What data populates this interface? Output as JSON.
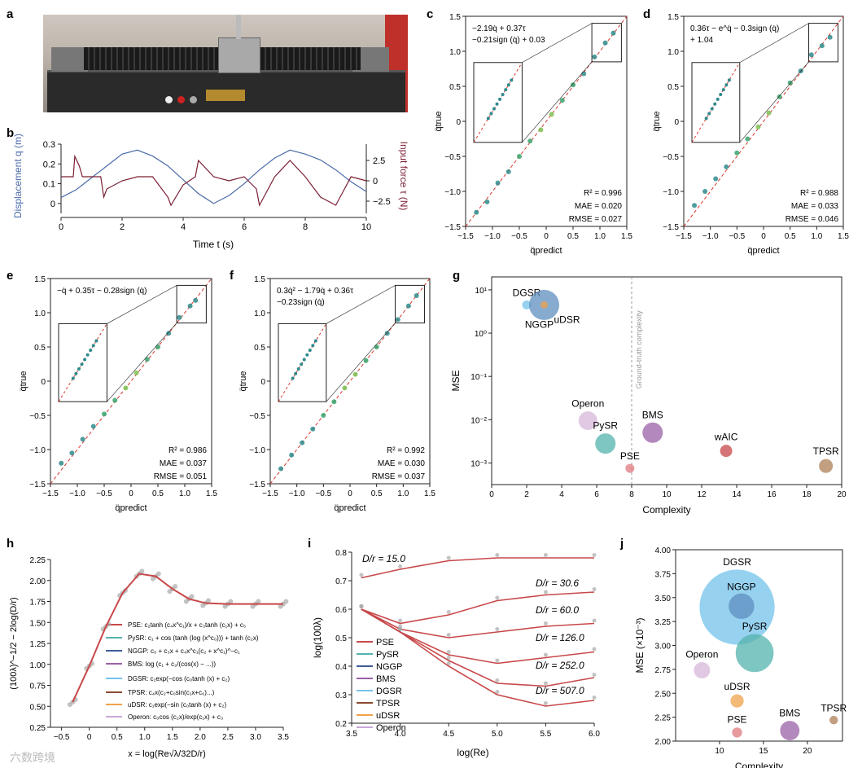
{
  "panel_labels": {
    "a": "a",
    "b": "b",
    "c": "c",
    "d": "d",
    "e": "e",
    "f": "f",
    "g": "g",
    "h": "h",
    "i": "i",
    "j": "j"
  },
  "colors": {
    "displacement": "#4a6aa8",
    "force": "#7a1f33",
    "diagonal": "#d9352b"
  },
  "panel_b": {
    "ylabel_left": "Displacement q (m)",
    "ylabel_right": "Input force τ (N)",
    "xlabel": "Time t (s)",
    "xticks": [
      "0",
      "2",
      "4",
      "6",
      "8",
      "10"
    ],
    "yticks_left": [
      "0",
      "0.1",
      "0.2",
      "0.3"
    ],
    "yticks_right": [
      "−2.5",
      "0",
      "2.5"
    ]
  },
  "scatter_panels": {
    "c": {
      "equation_line1": "−2.19q̇ + 0.37τ",
      "equation_line2": "−0.21sign (q̇) + 0.03",
      "r2": "R² = 0.996",
      "mae": "MAE = 0.020",
      "rmse": "RMSE = 0.027"
    },
    "d": {
      "equation_line1": "0.36τ − e^q̇ − 0.3sign (q̇)",
      "equation_line2": "+ 1.04",
      "r2": "R² = 0.988",
      "mae": "MAE = 0.033",
      "rmse": "RMSE = 0.046"
    },
    "e": {
      "equation_line1": "−q̇ + 0.35τ − 0.28sign (q̇)",
      "equation_line2": "",
      "r2": "R² = 0.986",
      "mae": "MAE = 0.037",
      "rmse": "RMSE = 0.051"
    },
    "f": {
      "equation_line1": "0.3q̇² − 1.79q̇ + 0.36τ",
      "equation_line2": "−0.23sign (q̇)",
      "r2": "R² = 0.992",
      "mae": "MAE = 0.030",
      "rmse": "RMSE = 0.037"
    },
    "xlabel": "q̈predict",
    "ylabel": "q̈true",
    "ticks": [
      "−1.5",
      "−1.0",
      "−0.5",
      "0",
      "0.5",
      "1.0",
      "1.5"
    ]
  },
  "panel_i_text": {
    "legend": [
      "PSE",
      "PySR",
      "NGGP",
      "BMS",
      "DGSR",
      "TPSR",
      "uDSR",
      "Operon"
    ]
  },
  "panel_h_text": {
    "legend_formulas": [
      "PSE: c₂tanh (c₄x^c₁)/x + c₃tanh (c₁x) + c₅",
      "PySR: c₁ + cos (tanh (log (x^c₀))) + tanh (c₂x)",
      "NGGP: c₀ + c₃x + c₄x^c₁(c₂ + x^c₁)^−c₁",
      "BMS: log (c₁ + c₂/(cos(x) − ...))",
      "DGSR: c₁exp(−cos (c₀tanh (x) + c₂)",
      "TPSR: c₄x(c₂+c₀sin(c₁x+c₆)...)",
      "uDSR: c₁exp(−sin (c₀tanh (x) + c₂)",
      "Operon: c₀cos (c₂x)/exp(c₁x) + c₃"
    ]
  },
  "watermark": "六数跨境",
  "chart_data": [
    {
      "type": "line",
      "id": "b",
      "xlabel": "Time t (s)",
      "ylabel": "Displacement q (m)",
      "ylabel_right": "Input force τ (N)",
      "xlim": [
        0,
        10
      ],
      "ylim": [
        -0.05,
        0.3
      ],
      "ylim_right": [
        -4,
        4.5
      ],
      "series": [
        {
          "name": "Displacement q (m)",
          "x": [
            0,
            0.5,
            1,
            1.5,
            2,
            2.5,
            3,
            3.5,
            4,
            4.5,
            5,
            5.5,
            6,
            6.5,
            7,
            7.5,
            8,
            8.5,
            9,
            9.5,
            10
          ],
          "values": [
            0.03,
            0.07,
            0.13,
            0.19,
            0.25,
            0.27,
            0.24,
            0.19,
            0.12,
            0.05,
            0.0,
            0.04,
            0.1,
            0.17,
            0.23,
            0.27,
            0.25,
            0.22,
            0.17,
            0.11,
            0.06
          ]
        },
        {
          "name": "Input force τ (N)",
          "x": [
            0,
            0.4,
            0.45,
            0.6,
            0.7,
            1.3,
            1.4,
            1.5,
            2,
            2.5,
            3,
            3.5,
            3.6,
            4,
            4.4,
            4.5,
            5,
            5.5,
            6,
            6.4,
            6.5,
            7,
            7.5,
            8,
            8.5,
            9,
            9.5,
            10
          ],
          "values": [
            0.5,
            0.5,
            3,
            1.8,
            0.5,
            0.5,
            -2,
            -1,
            0,
            0.5,
            0.5,
            -2,
            -3,
            -0.5,
            0.5,
            2.5,
            0.5,
            0,
            0.5,
            -1,
            -3,
            0.5,
            2.5,
            0.5,
            -2,
            -3,
            0.5,
            0
          ]
        }
      ]
    },
    {
      "type": "scatter",
      "id": "c",
      "xlabel": "q̈predict",
      "ylabel": "q̈true",
      "xlim": [
        -1.5,
        1.5
      ],
      "ylim": [
        -1.5,
        1.5
      ],
      "values": [
        [
          -1.3,
          -1.3
        ],
        [
          -1.1,
          -1.15
        ],
        [
          -0.9,
          -0.88
        ],
        [
          -0.7,
          -0.72
        ],
        [
          -0.5,
          -0.5
        ],
        [
          -0.3,
          -0.28
        ],
        [
          -0.1,
          -0.12
        ],
        [
          0.1,
          0.1
        ],
        [
          0.3,
          0.3
        ],
        [
          0.5,
          0.52
        ],
        [
          0.7,
          0.68
        ],
        [
          0.9,
          0.92
        ],
        [
          1.1,
          1.12
        ],
        [
          1.25,
          1.26
        ]
      ]
    },
    {
      "type": "scatter",
      "id": "d",
      "xlabel": "q̈predict",
      "ylabel": "q̈true",
      "xlim": [
        -1.5,
        1.5
      ],
      "ylim": [
        -1.5,
        1.5
      ],
      "values": [
        [
          -1.3,
          -1.2
        ],
        [
          -1.1,
          -1.0
        ],
        [
          -0.9,
          -0.82
        ],
        [
          -0.7,
          -0.65
        ],
        [
          -0.5,
          -0.45
        ],
        [
          -0.3,
          -0.25
        ],
        [
          -0.1,
          -0.08
        ],
        [
          0.1,
          0.12
        ],
        [
          0.3,
          0.35
        ],
        [
          0.5,
          0.55
        ],
        [
          0.7,
          0.72
        ],
        [
          0.9,
          0.95
        ],
        [
          1.1,
          1.08
        ],
        [
          1.25,
          1.2
        ]
      ]
    },
    {
      "type": "scatter",
      "id": "e",
      "xlabel": "q̈predict",
      "ylabel": "q̈true",
      "xlim": [
        -1.5,
        1.5
      ],
      "ylim": [
        -1.5,
        1.5
      ],
      "values": [
        [
          -1.3,
          -1.2
        ],
        [
          -1.1,
          -1.05
        ],
        [
          -0.9,
          -0.85
        ],
        [
          -0.7,
          -0.66
        ],
        [
          -0.5,
          -0.48
        ],
        [
          -0.3,
          -0.28
        ],
        [
          -0.1,
          -0.1
        ],
        [
          0.1,
          0.12
        ],
        [
          0.3,
          0.32
        ],
        [
          0.5,
          0.5
        ],
        [
          0.7,
          0.7
        ],
        [
          0.9,
          0.93
        ],
        [
          1.1,
          1.1
        ],
        [
          1.2,
          1.18
        ]
      ]
    },
    {
      "type": "scatter",
      "id": "f",
      "xlabel": "q̈predict",
      "ylabel": "q̈true",
      "xlim": [
        -1.5,
        1.5
      ],
      "ylim": [
        -1.5,
        1.5
      ],
      "values": [
        [
          -1.3,
          -1.28
        ],
        [
          -1.1,
          -1.08
        ],
        [
          -0.9,
          -0.9
        ],
        [
          -0.7,
          -0.7
        ],
        [
          -0.5,
          -0.5
        ],
        [
          -0.3,
          -0.3
        ],
        [
          -0.1,
          -0.1
        ],
        [
          0.1,
          0.1
        ],
        [
          0.3,
          0.3
        ],
        [
          0.5,
          0.5
        ],
        [
          0.7,
          0.7
        ],
        [
          0.9,
          0.9
        ],
        [
          1.1,
          1.1
        ],
        [
          1.25,
          1.25
        ]
      ]
    },
    {
      "type": "scatter",
      "id": "g",
      "xlabel": "Complexity",
      "ylabel": "MSE",
      "xlim": [
        0,
        20
      ],
      "ylim_log10": [
        -3.5,
        1.3
      ],
      "xticks": [
        "0",
        "2",
        "4",
        "6",
        "8",
        "10",
        "12",
        "14",
        "16",
        "18",
        "20"
      ],
      "yticks": [
        "10⁻³",
        "10⁻²",
        "10⁻¹",
        "10⁰",
        "10¹"
      ],
      "annotation": "Ground-truth complexity",
      "annotation_x": 8,
      "points": [
        {
          "name": "DGSR",
          "x": 2,
          "y": 4.5,
          "size": 5,
          "color": "#74c4ec"
        },
        {
          "name": "uDSR",
          "x": 3,
          "y": 4.5,
          "size": 18,
          "color": "#5f8fc0"
        },
        {
          "name": "NGGP",
          "x": 3,
          "y": 4.5,
          "size": 4,
          "color": "#f0a24a"
        },
        {
          "name": "Operon",
          "x": 5.5,
          "y": 0.0095,
          "size": 11,
          "color": "#d8b8dc"
        },
        {
          "name": "PySR",
          "x": 6.5,
          "y": 0.0028,
          "size": 12,
          "color": "#54b3ad"
        },
        {
          "name": "PSE",
          "x": 7.9,
          "y": 0.00075,
          "size": 5,
          "color": "#df7a80"
        },
        {
          "name": "BMS",
          "x": 9.2,
          "y": 0.005,
          "size": 12,
          "color": "#9a62a8"
        },
        {
          "name": "wAIC",
          "x": 13.4,
          "y": 0.0019,
          "size": 7,
          "color": "#c8484a"
        },
        {
          "name": "TPSR",
          "x": 19.1,
          "y": 0.00085,
          "size": 8,
          "color": "#b08058"
        }
      ]
    },
    {
      "type": "line",
      "id": "h",
      "xlabel": "x = log(Re√λ/32D/r)",
      "ylabel": "(100λ)^−1/2 − 2log(D/r)",
      "xlim": [
        -0.7,
        3.5
      ],
      "ylim": [
        0.25,
        2.25
      ],
      "xticks": [
        "−0.5",
        "0",
        "0.5",
        "1.0",
        "1.5",
        "2.0",
        "2.5",
        "3.0",
        "3.5"
      ],
      "yticks": [
        "0.25",
        "0.50",
        "0.75",
        "1.00",
        "1.25",
        "1.50",
        "1.75",
        "2.00",
        "2.25"
      ],
      "series": [
        {
          "name": "PSE",
          "x": [
            -0.3,
            0,
            0.3,
            0.6,
            0.9,
            1.2,
            1.5,
            1.8,
            2.1,
            2.5,
            3.0,
            3.5
          ],
          "values": [
            0.55,
            0.98,
            1.45,
            1.85,
            2.08,
            2.05,
            1.9,
            1.78,
            1.73,
            1.72,
            1.72,
            1.72
          ]
        }
      ]
    },
    {
      "type": "line",
      "id": "i",
      "xlabel": "log(Re)",
      "ylabel": "log(100λ)",
      "xlim": [
        3.5,
        6.0
      ],
      "ylim": [
        0.2,
        0.8
      ],
      "xticks": [
        "3.5",
        "4.0",
        "4.5",
        "5.0",
        "5.5",
        "6.0"
      ],
      "yticks": [
        "0.2",
        "0.3",
        "0.4",
        "0.5",
        "0.6",
        "0.7",
        "0.8"
      ],
      "curve_labels": [
        "D/r = 15.0",
        "D/r = 30.6",
        "D/r = 60.0",
        "D/r = 126.0",
        "D/r = 252.0",
        "D/r = 507.0"
      ],
      "series": [
        {
          "name": "D/r = 15.0",
          "x": [
            3.6,
            4.0,
            4.5,
            5.0,
            5.5,
            6.0
          ],
          "values": [
            0.71,
            0.74,
            0.77,
            0.78,
            0.78,
            0.78
          ]
        },
        {
          "name": "D/r = 30.6",
          "x": [
            3.6,
            4.0,
            4.5,
            5.0,
            5.5,
            6.0
          ],
          "values": [
            0.6,
            0.55,
            0.58,
            0.63,
            0.65,
            0.66
          ]
        },
        {
          "name": "D/r = 60.0",
          "x": [
            3.6,
            4.0,
            4.5,
            5.0,
            5.5,
            6.0
          ],
          "values": [
            0.6,
            0.53,
            0.5,
            0.52,
            0.54,
            0.55
          ]
        },
        {
          "name": "D/r = 126.0",
          "x": [
            3.6,
            4.0,
            4.5,
            5.0,
            5.5,
            6.0
          ],
          "values": [
            0.6,
            0.52,
            0.44,
            0.41,
            0.43,
            0.45
          ]
        },
        {
          "name": "D/r = 252.0",
          "x": [
            3.6,
            4.0,
            4.5,
            5.0,
            5.5,
            6.0
          ],
          "values": [
            0.6,
            0.52,
            0.42,
            0.34,
            0.33,
            0.36
          ]
        },
        {
          "name": "D/r = 507.0",
          "x": [
            3.6,
            4.0,
            4.5,
            5.0,
            5.5,
            6.0
          ],
          "values": [
            0.6,
            0.52,
            0.4,
            0.3,
            0.26,
            0.28
          ]
        }
      ]
    },
    {
      "type": "scatter",
      "id": "j",
      "xlabel": "Complexity",
      "ylabel": "MSE (×10⁻³)",
      "xlim": [
        5,
        24
      ],
      "ylim": [
        2.0,
        4.0
      ],
      "xticks": [
        "10",
        "15",
        "20"
      ],
      "yticks": [
        "2.00",
        "2.25",
        "2.50",
        "2.75",
        "3.00",
        "3.25",
        "3.50",
        "3.75",
        "4.00"
      ],
      "points": [
        {
          "name": "DGSR",
          "x": 12,
          "y": 3.4,
          "size": 24,
          "color": "#74c4ec"
        },
        {
          "name": "NGGP",
          "x": 12.5,
          "y": 3.41,
          "size": 8,
          "color": "#5f8fc0"
        },
        {
          "name": "PySR",
          "x": 14,
          "y": 2.92,
          "size": 12,
          "color": "#54b3ad"
        },
        {
          "name": "Operon",
          "x": 8,
          "y": 2.74,
          "size": 5,
          "color": "#d8b8dc"
        },
        {
          "name": "uDSR",
          "x": 12,
          "y": 2.42,
          "size": 4,
          "color": "#f0a24a"
        },
        {
          "name": "PSE",
          "x": 12,
          "y": 2.09,
          "size": 3,
          "color": "#df7a80"
        },
        {
          "name": "BMS",
          "x": 18,
          "y": 2.11,
          "size": 6,
          "color": "#9a62a8"
        },
        {
          "name": "TPSR",
          "x": 23,
          "y": 2.22,
          "size": 2.5,
          "color": "#b08058"
        }
      ]
    }
  ]
}
